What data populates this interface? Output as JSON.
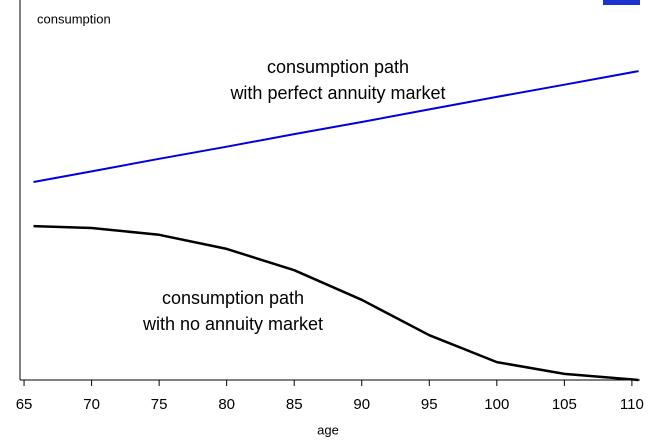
{
  "chart_data": {
    "type": "line",
    "y_label": "consumption",
    "x_label": "age",
    "x": [
      65.7,
      70,
      75,
      80,
      85,
      90,
      95,
      100,
      105,
      110.5
    ],
    "series": [
      {
        "name": "consumption path with perfect annuity market",
        "color": "#0000dd",
        "values": [
          52.1,
          54.9,
          58.2,
          61.4,
          64.7,
          67.9,
          71.2,
          74.5,
          77.7,
          81.3
        ]
      },
      {
        "name": "consumption path with no annuity market",
        "color": "#000000",
        "values": [
          40.5,
          40.0,
          38.2,
          34.5,
          28.9,
          21.1,
          11.8,
          4.7,
          1.6,
          0
        ]
      }
    ],
    "annotations": [
      [
        "consumption path",
        "with perfect annuity market"
      ],
      [
        "consumption path",
        "with no annuity market"
      ]
    ],
    "xlim": [
      64.7,
      110.6
    ],
    "xticks": [
      65,
      70,
      75,
      80,
      85,
      90,
      95,
      100,
      105,
      110
    ],
    "ylim": [
      0,
      100
    ],
    "grid": false
  }
}
